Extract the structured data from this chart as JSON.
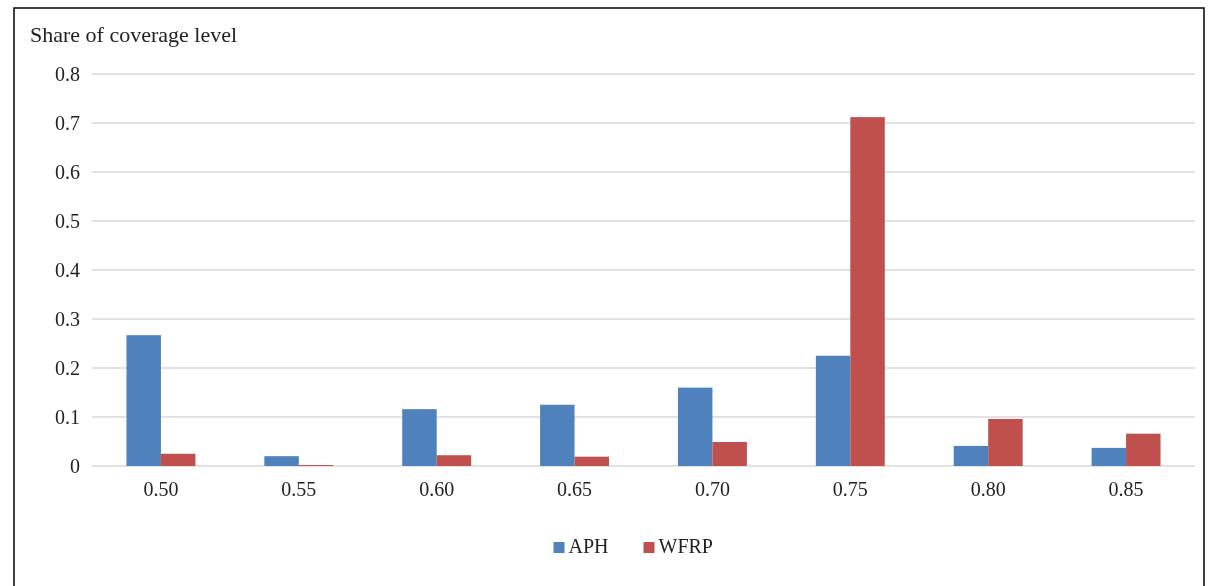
{
  "chart_data": {
    "type": "bar",
    "ylabel": "Share of coverage level",
    "categories": [
      "0.50",
      "0.55",
      "0.60",
      "0.65",
      "0.70",
      "0.75",
      "0.80",
      "0.85"
    ],
    "series": [
      {
        "name": "APH",
        "color": "#4f81bd",
        "values": [
          0.267,
          0.02,
          0.116,
          0.125,
          0.16,
          0.225,
          0.041,
          0.037
        ]
      },
      {
        "name": "WFRP",
        "color": "#c0504d",
        "values": [
          0.025,
          0.002,
          0.022,
          0.019,
          0.049,
          0.712,
          0.096,
          0.066
        ]
      }
    ],
    "ylim": [
      0,
      0.8
    ],
    "yticks": [
      0,
      0.1,
      0.2,
      0.3,
      0.4,
      0.5,
      0.6,
      0.7,
      0.8
    ],
    "grid": "y",
    "legend": "bottom"
  }
}
